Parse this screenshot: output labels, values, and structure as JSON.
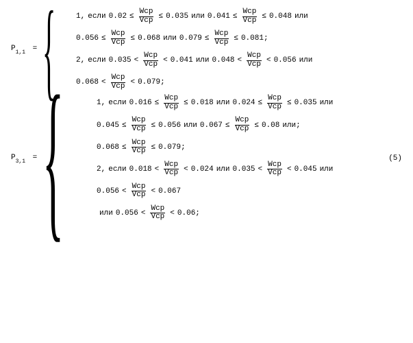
{
  "frac": {
    "num": "Wср",
    "den": "Vср"
  },
  "words": {
    "esli": "если",
    "ili": "или",
    "ilisemi": "или;"
  },
  "ops": {
    "le": "≤",
    "lt": "<",
    "eq": "="
  },
  "val": {
    "one": "1,",
    "two": "2,"
  },
  "p11": {
    "lhs": "P",
    "sub": "1,1",
    "l1": {
      "a": "0.02",
      "b": "0.035",
      "c": "0.041",
      "d": "0.048"
    },
    "l2": {
      "a": "0.056",
      "b": "0.068",
      "c": "0.079",
      "d": "0.081;"
    },
    "l3": {
      "a": "0.035",
      "b": "0.041",
      "c": "0.048",
      "d": "0.056"
    },
    "l4": {
      "a": "0.068",
      "b": "0.079;"
    }
  },
  "p31": {
    "lhs": "P",
    "sub": "3,1",
    "l1": {
      "a": "0.016",
      "b": "0.018",
      "c": "0.024",
      "d": "0.035"
    },
    "l2": {
      "a": "0.045",
      "b": "0.056",
      "c": "0.067",
      "d": "0.08"
    },
    "l3": {
      "a": "0.068",
      "b": "0.079;"
    },
    "l4": {
      "a": "0.018",
      "b": "0.024",
      "c": "0.035",
      "d": "0.045"
    },
    "l5": {
      "a": "0.056",
      "b": "0.067"
    },
    "l6": {
      "a": "0.056",
      "b": "0.06;"
    }
  },
  "eqnum": "(5)"
}
